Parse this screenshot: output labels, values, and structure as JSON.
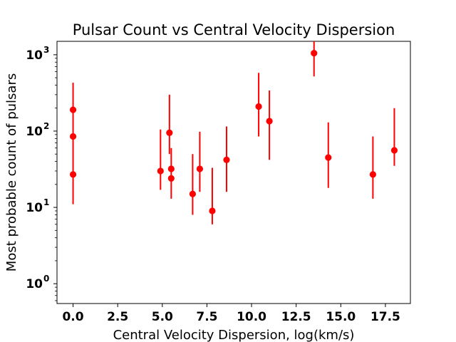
{
  "chart_data": {
    "type": "scatter",
    "title": "Pulsar Count vs Central Velocity Dispersion",
    "xlabel": "Central Velocity Dispersion, log(km/s)",
    "ylabel": "Most probable count of pulsars",
    "xlim": [
      -0.9,
      18.9
    ],
    "ylim": [
      0.55,
      1500
    ],
    "yscale": "log",
    "grid": false,
    "legend": "none",
    "x_ticks": [
      {
        "value": 0,
        "label": "0.0"
      },
      {
        "value": 2.5,
        "label": "2.5"
      },
      {
        "value": 5,
        "label": "5.0"
      },
      {
        "value": 7.5,
        "label": "7.5"
      },
      {
        "value": 10,
        "label": "10.0"
      },
      {
        "value": 12.5,
        "label": "12.5"
      },
      {
        "value": 15,
        "label": "15.0"
      },
      {
        "value": 17.5,
        "label": "17.5"
      }
    ],
    "y_ticks": [
      {
        "value": 1,
        "base": "10",
        "exp": "0"
      },
      {
        "value": 10,
        "base": "10",
        "exp": "1"
      },
      {
        "value": 100,
        "base": "10",
        "exp": "2"
      },
      {
        "value": 1000,
        "base": "10",
        "exp": "3"
      }
    ],
    "series": [
      {
        "color": "#ff0000",
        "points": [
          {
            "x": 0.0,
            "y": 190,
            "lo": 190,
            "hi": 190
          },
          {
            "x": 0.0,
            "y": 85,
            "lo": 11,
            "hi": 430
          },
          {
            "x": 0.0,
            "y": 27,
            "lo": 27,
            "hi": 27
          },
          {
            "x": 4.9,
            "y": 30,
            "lo": 17,
            "hi": 105
          },
          {
            "x": 5.4,
            "y": 95,
            "lo": 50,
            "hi": 300
          },
          {
            "x": 5.5,
            "y": 32,
            "lo": 32,
            "hi": 32
          },
          {
            "x": 5.5,
            "y": 24,
            "lo": 13,
            "hi": 60
          },
          {
            "x": 6.7,
            "y": 15,
            "lo": 8,
            "hi": 50
          },
          {
            "x": 7.1,
            "y": 32,
            "lo": 16,
            "hi": 98
          },
          {
            "x": 7.8,
            "y": 9,
            "lo": 6,
            "hi": 33
          },
          {
            "x": 8.6,
            "y": 42,
            "lo": 16,
            "hi": 115
          },
          {
            "x": 10.4,
            "y": 210,
            "lo": 85,
            "hi": 580
          },
          {
            "x": 11.0,
            "y": 135,
            "lo": 42,
            "hi": 340
          },
          {
            "x": 13.5,
            "y": 1050,
            "lo": 520,
            "hi": 1600
          },
          {
            "x": 14.3,
            "y": 45,
            "lo": 18,
            "hi": 130
          },
          {
            "x": 16.8,
            "y": 27,
            "lo": 13,
            "hi": 85
          },
          {
            "x": 18.0,
            "y": 56,
            "lo": 35,
            "hi": 200
          }
        ]
      }
    ]
  }
}
